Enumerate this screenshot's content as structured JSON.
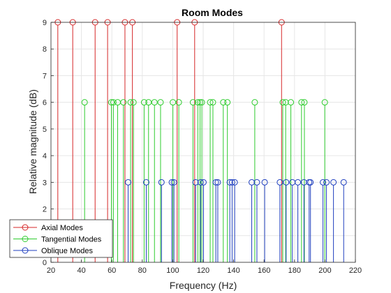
{
  "chart_data": {
    "type": "stem",
    "title": "Room Modes",
    "xlabel": "Frequency (Hz)",
    "ylabel": "Relative magnitude (dB)",
    "xlim": [
      20,
      220
    ],
    "ylim": [
      0,
      9
    ],
    "xticks": [
      20,
      40,
      60,
      80,
      100,
      120,
      140,
      160,
      180,
      200,
      220
    ],
    "yticks": [
      0,
      1,
      2,
      3,
      4,
      5,
      6,
      7,
      8,
      9
    ],
    "grid": true,
    "legend_position": "bottom-left",
    "series": [
      {
        "name": "Axial Modes",
        "color": "#d62728",
        "y": 9,
        "x": [
          24.5,
          34.3,
          49.0,
          57.2,
          68.6,
          73.5,
          102.9,
          114.4,
          171.5
        ]
      },
      {
        "name": "Tangential Modes",
        "color": "#2ecc2e",
        "y": 6,
        "x": [
          42.1,
          59.7,
          61.0,
          63.8,
          67.6,
          72.3,
          74.2,
          81.2,
          84.1,
          88.0,
          92.0,
          100.1,
          104.0,
          113.3,
          116.5,
          117.9,
          119.1,
          124.6,
          126.4,
          133.2,
          135.9,
          153.9,
          172.3,
          174.2,
          177.6,
          184.6,
          186.5,
          199.9
        ]
      },
      {
        "name": "Oblique Modes",
        "color": "#1f3fbf",
        "y": 3,
        "x": [
          70.7,
          82.6,
          92.6,
          99.4,
          100.8,
          115.0,
          118.3,
          120.2,
          128.3,
          129.6,
          137.5,
          139.0,
          140.7,
          151.9,
          155.3,
          160.4,
          170.4,
          174.5,
          178.6,
          182.2,
          186.2,
          189.6,
          190.5,
          198.7,
          201.0,
          205.6,
          212.3
        ]
      }
    ]
  }
}
